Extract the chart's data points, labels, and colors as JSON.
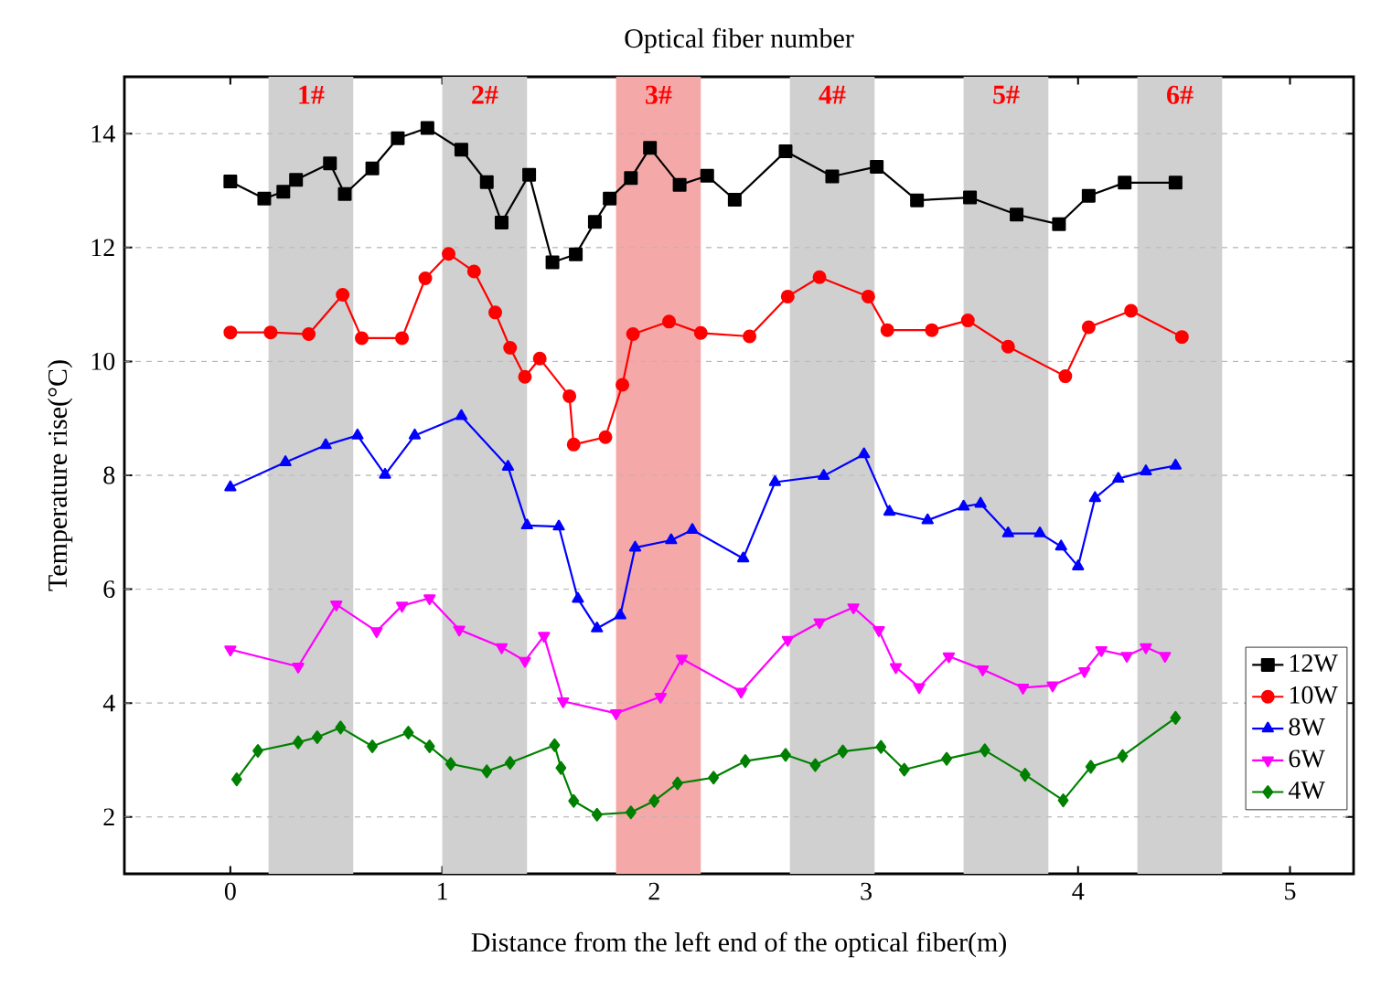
{
  "chart_data": {
    "type": "line",
    "title": "Optical fiber number",
    "xlabel": "Distance from the left end of the optical fiber(m)",
    "ylabel": "Temperature rise(°C)",
    "xlim": [
      -0.5,
      5.3
    ],
    "xticks": [
      0,
      1,
      2,
      3,
      4,
      5
    ],
    "ylim": [
      1,
      15
    ],
    "yticks": [
      2,
      4,
      6,
      8,
      10,
      12,
      14
    ],
    "grid": "y",
    "legend": "bottom right",
    "bands": [
      {
        "axis": "x",
        "from": 0.18,
        "to": 0.58,
        "label": "1#",
        "color": "#d0d0d0"
      },
      {
        "axis": "x",
        "from": 1.0,
        "to": 1.4,
        "label": "2#",
        "color": "#d0d0d0"
      },
      {
        "axis": "x",
        "from": 1.82,
        "to": 2.22,
        "label": "3#",
        "color": "#f5a8a8"
      },
      {
        "axis": "x",
        "from": 2.64,
        "to": 3.04,
        "label": "4#",
        "color": "#d0d0d0"
      },
      {
        "axis": "x",
        "from": 3.46,
        "to": 3.86,
        "label": "5#",
        "color": "#d0d0d0"
      },
      {
        "axis": "x",
        "from": 4.28,
        "to": 4.68,
        "label": "6#",
        "color": "#d0d0d0"
      }
    ],
    "series": [
      {
        "name": "12W",
        "color": "#000000",
        "marker": "square",
        "x": [
          0,
          0.16,
          0.25,
          0.31,
          0.47,
          0.54,
          0.67,
          0.79,
          0.93,
          1.09,
          1.21,
          1.28,
          1.41,
          1.52,
          1.63,
          1.72,
          1.79,
          1.89,
          1.98,
          2.12,
          2.25,
          2.38,
          2.62,
          2.84,
          3.05,
          3.24,
          3.49,
          3.71,
          3.91,
          4.05,
          4.22,
          4.46
        ],
        "values": [
          13.16,
          12.86,
          12.98,
          13.19,
          13.48,
          12.94,
          13.39,
          13.92,
          14.1,
          13.72,
          13.15,
          12.44,
          13.28,
          11.74,
          11.88,
          12.45,
          12.86,
          13.22,
          13.75,
          13.1,
          13.26,
          12.84,
          13.69,
          13.25,
          13.42,
          12.83,
          12.88,
          12.58,
          12.41,
          12.91,
          13.14,
          13.14
        ]
      },
      {
        "name": "10W",
        "color": "#ff0000",
        "marker": "circle",
        "x": [
          0,
          0.19,
          0.37,
          0.53,
          0.62,
          0.81,
          0.92,
          1.03,
          1.15,
          1.25,
          1.32,
          1.39,
          1.46,
          1.6,
          1.62,
          1.77,
          1.85,
          1.9,
          2.07,
          2.22,
          2.45,
          2.63,
          2.78,
          3.01,
          3.1,
          3.31,
          3.48,
          3.67,
          3.94,
          4.05,
          4.25,
          4.49
        ],
        "values": [
          10.51,
          10.51,
          10.48,
          11.17,
          10.41,
          10.41,
          11.46,
          11.89,
          11.58,
          10.86,
          10.24,
          9.73,
          10.05,
          9.39,
          8.54,
          8.67,
          9.59,
          10.48,
          10.7,
          10.5,
          10.44,
          11.14,
          11.48,
          11.14,
          10.55,
          10.55,
          10.72,
          10.26,
          9.74,
          10.6,
          10.89,
          10.43
        ]
      },
      {
        "name": "8W",
        "color": "#0000ff",
        "marker": "triangle",
        "x": [
          0,
          0.26,
          0.45,
          0.6,
          0.73,
          0.87,
          1.09,
          1.31,
          1.4,
          1.55,
          1.64,
          1.73,
          1.84,
          1.91,
          2.08,
          2.18,
          2.42,
          2.57,
          2.8,
          2.99,
          3.11,
          3.29,
          3.46,
          3.54,
          3.67,
          3.82,
          3.92,
          4.0,
          4.08,
          4.19,
          4.32,
          4.46
        ],
        "values": [
          7.79,
          8.23,
          8.53,
          8.7,
          8.01,
          8.7,
          9.04,
          8.15,
          7.12,
          7.1,
          5.83,
          5.31,
          5.54,
          6.73,
          6.86,
          7.04,
          6.54,
          7.88,
          7.99,
          8.37,
          7.36,
          7.21,
          7.45,
          7.5,
          6.98,
          6.98,
          6.75,
          6.4,
          7.6,
          7.94,
          8.07,
          8.17
        ]
      },
      {
        "name": "6W",
        "color": "#ff00ff",
        "marker": "triangle-down",
        "x": [
          0,
          0.32,
          0.5,
          0.69,
          0.81,
          0.94,
          1.08,
          1.28,
          1.39,
          1.48,
          1.57,
          1.82,
          2.03,
          2.13,
          2.41,
          2.63,
          2.78,
          2.94,
          3.06,
          3.14,
          3.25,
          3.39,
          3.55,
          3.74,
          3.88,
          4.03,
          4.11,
          4.23,
          4.32,
          4.41
        ],
        "values": [
          4.94,
          4.64,
          5.73,
          5.26,
          5.71,
          5.84,
          5.29,
          4.98,
          4.74,
          5.18,
          4.03,
          3.82,
          4.11,
          4.78,
          4.2,
          5.11,
          5.42,
          5.68,
          5.28,
          4.63,
          4.28,
          4.82,
          4.59,
          4.27,
          4.31,
          4.56,
          4.93,
          4.83,
          4.98,
          4.83
        ]
      },
      {
        "name": "4W",
        "color": "#008000",
        "marker": "diamond",
        "x": [
          0.03,
          0.13,
          0.32,
          0.41,
          0.52,
          0.67,
          0.84,
          0.94,
          1.04,
          1.21,
          1.32,
          1.53,
          1.56,
          1.62,
          1.73,
          1.89,
          2.0,
          2.11,
          2.28,
          2.43,
          2.62,
          2.76,
          2.89,
          3.07,
          3.18,
          3.38,
          3.56,
          3.75,
          3.93,
          4.06,
          4.21,
          4.46
        ],
        "values": [
          2.66,
          3.16,
          3.31,
          3.4,
          3.57,
          3.24,
          3.48,
          3.24,
          2.93,
          2.8,
          2.95,
          3.26,
          2.86,
          2.28,
          2.04,
          2.08,
          2.28,
          2.59,
          2.69,
          2.98,
          3.09,
          2.91,
          3.15,
          3.23,
          2.83,
          3.02,
          3.17,
          2.74,
          2.29,
          2.88,
          3.07,
          3.74
        ]
      }
    ]
  }
}
